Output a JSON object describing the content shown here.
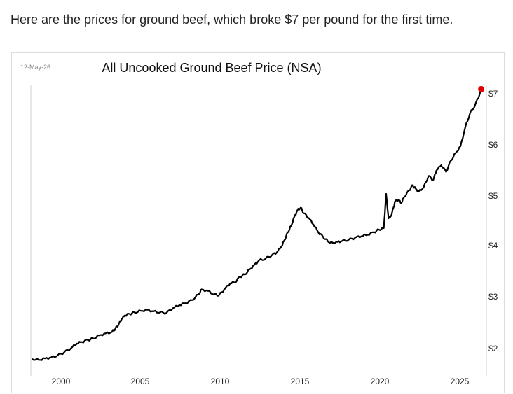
{
  "caption": "Here are the prices for ground beef, which broke $7 per pound for the first time.",
  "chart_data": {
    "type": "line",
    "date_label": "12-May-26",
    "title": "All Uncooked Ground Beef Price (NSA)",
    "xlabel": "",
    "ylabel": "",
    "x_ticks": [
      "2000",
      "2005",
      "2010",
      "2015",
      "2020",
      "2025"
    ],
    "y_ticks": [
      "$2",
      "$3",
      "$4",
      "$5",
      "$6",
      "$7"
    ],
    "xlim": [
      1998.1,
      2027.2
    ],
    "ylim": [
      1.8,
      7.3
    ],
    "grid": false,
    "legend": "none",
    "line_color": "#000000",
    "highlight_color": "#e00000",
    "series": [
      {
        "x": [
          1998.2,
          1998.6,
          1999.0,
          1999.4,
          1999.8,
          2000.2,
          2000.6,
          2001.0,
          2001.3,
          2001.7,
          2002.0,
          2002.4,
          2002.8,
          2003.2,
          2003.4,
          2003.6,
          2003.8,
          2004.0,
          2004.3,
          2004.6,
          2005.0,
          2005.4,
          2005.8,
          2006.2,
          2006.6,
          2007.0,
          2007.4,
          2007.8,
          2008.2,
          2008.6,
          2008.8,
          2009.2,
          2009.6,
          2009.9,
          2010.2,
          2010.6,
          2010.9,
          2011.2,
          2011.5,
          2011.8,
          2012.1,
          2012.4,
          2012.8,
          2013.2,
          2013.5,
          2013.8,
          2014.0,
          2014.2,
          2014.4,
          2014.6,
          2014.8,
          2015.0,
          2015.2,
          2015.5,
          2015.8,
          2016.1,
          2016.4,
          2016.7,
          2017.0,
          2017.3,
          2017.6,
          2018.0,
          2018.4,
          2018.8,
          2019.2,
          2019.6,
          2019.9,
          2020.2,
          2020.35,
          2020.5,
          2020.7,
          2020.9,
          2021.1,
          2021.3,
          2021.5,
          2021.8,
          2022.0,
          2022.2,
          2022.4,
          2022.7,
          2023.0,
          2023.3,
          2023.5,
          2023.8,
          2024.1,
          2024.4,
          2024.7,
          2025.0,
          2025.3,
          2025.6,
          2025.9,
          2026.2,
          2026.3
        ],
        "y": [
          1.77,
          1.75,
          1.78,
          1.8,
          1.84,
          1.9,
          1.97,
          2.07,
          2.1,
          2.14,
          2.17,
          2.23,
          2.27,
          2.3,
          2.36,
          2.44,
          2.55,
          2.62,
          2.65,
          2.68,
          2.71,
          2.73,
          2.7,
          2.68,
          2.67,
          2.76,
          2.82,
          2.86,
          2.92,
          3.03,
          3.13,
          3.1,
          3.03,
          3.02,
          3.12,
          3.25,
          3.27,
          3.38,
          3.42,
          3.52,
          3.61,
          3.7,
          3.73,
          3.8,
          3.85,
          3.97,
          4.1,
          4.25,
          4.37,
          4.55,
          4.68,
          4.73,
          4.62,
          4.53,
          4.4,
          4.25,
          4.16,
          4.07,
          4.04,
          4.06,
          4.08,
          4.1,
          4.14,
          4.17,
          4.2,
          4.25,
          4.3,
          4.33,
          5.0,
          4.52,
          4.6,
          4.85,
          4.88,
          4.82,
          4.95,
          5.07,
          5.17,
          5.1,
          5.05,
          5.13,
          5.35,
          5.27,
          5.46,
          5.56,
          5.43,
          5.65,
          5.8,
          5.93,
          6.3,
          6.58,
          6.72,
          6.95,
          7.05
        ]
      }
    ],
    "highlight_point": {
      "x": 2026.3,
      "y": 7.05
    }
  }
}
